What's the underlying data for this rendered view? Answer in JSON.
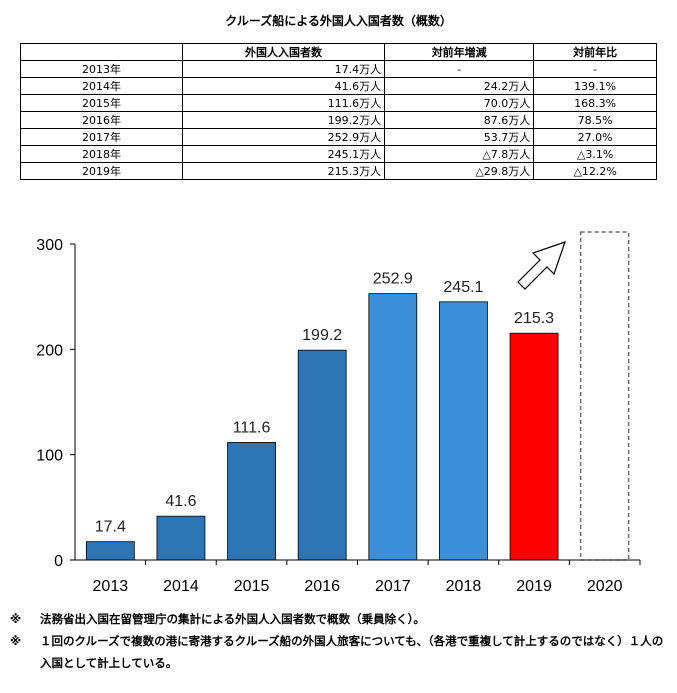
{
  "table": {
    "title": "クルーズ船による外国人入国者数（概数）",
    "headers": [
      "",
      "外国人入国者数",
      "対前年増減",
      "対前年比"
    ],
    "rows": [
      [
        "2013年",
        "17.4万人",
        "-",
        "-"
      ],
      [
        "2014年",
        "41.6万人",
        "24.2万人",
        "139.1%"
      ],
      [
        "2015年",
        "111.6万人",
        "70.0万人",
        "168.3%"
      ],
      [
        "2016年",
        "199.2万人",
        "87.6万人",
        "78.5%"
      ],
      [
        "2017年",
        "252.9万人",
        "53.7万人",
        "27.0%"
      ],
      [
        "2018年",
        "245.1万人",
        "△7.8万人",
        "△3.1%"
      ],
      [
        "2019年",
        "215.3万人",
        "△29.8万人",
        "△12.2%"
      ]
    ]
  },
  "chart_data": {
    "type": "bar",
    "categories": [
      "2013",
      "2014",
      "2015",
      "2016",
      "2017",
      "2018",
      "2019",
      "2020"
    ],
    "values": [
      17.4,
      41.6,
      111.6,
      199.2,
      252.9,
      245.1,
      215.3,
      null
    ],
    "data_labels": [
      "17.4",
      "41.6",
      "111.6",
      "199.2",
      "252.9",
      "245.1",
      "215.3",
      ""
    ],
    "ylim": [
      0,
      300
    ],
    "yticks": [
      0,
      100,
      200,
      300
    ],
    "title": "",
    "xlabel": "",
    "ylabel": "",
    "grid": false,
    "bar_colors": [
      "#2e75b6",
      "#2e75b6",
      "#2e75b6",
      "#2e75b6",
      "#3a8fd8",
      "#3a8fd8",
      "#ff0000",
      "none"
    ],
    "placeholder_2020": {
      "style": "dashed-outline",
      "trend_arrow": "up-right"
    }
  },
  "notes": [
    {
      "mark": "※",
      "text": "法務省出入国在留管理庁の集計による外国人入国者数で概数（乗員除く）。"
    },
    {
      "mark": "※",
      "text": "１回のクルーズで複数の港に寄港するクルーズ船の外国人旅客についても、（各港で重複して計上するのではなく）１人の入国として計上している。"
    }
  ]
}
